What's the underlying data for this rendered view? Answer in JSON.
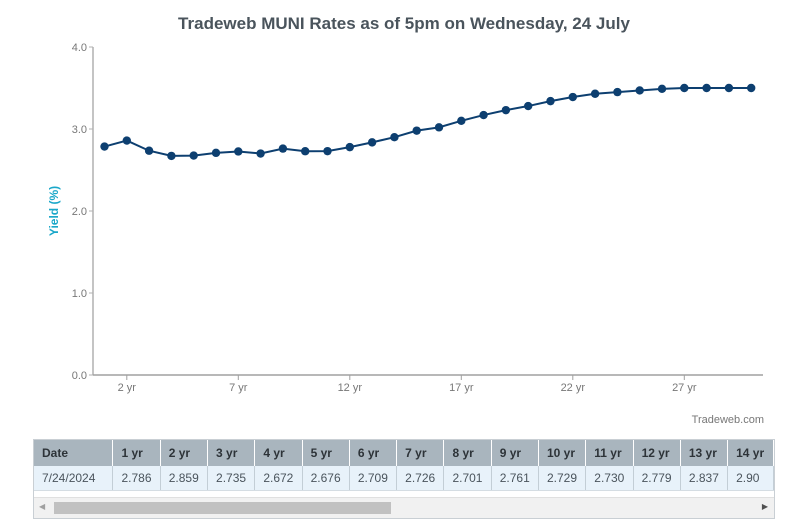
{
  "chart_data": {
    "type": "line",
    "title": "Tradeweb MUNI Rates as of 5pm on Wednesday, 24 July",
    "xlabel": "",
    "ylabel": "Yield (%)",
    "ylim": [
      0,
      4
    ],
    "yticks": [
      "0.0",
      "1.0",
      "2.0",
      "3.0",
      "4.0"
    ],
    "xlim": [
      0.5,
      30.5
    ],
    "xticks": [
      {
        "value": 2,
        "label": "2 yr"
      },
      {
        "value": 7,
        "label": "7 yr"
      },
      {
        "value": 12,
        "label": "12 yr"
      },
      {
        "value": 17,
        "label": "17 yr"
      },
      {
        "value": 22,
        "label": "22 yr"
      },
      {
        "value": 27,
        "label": "27 yr"
      }
    ],
    "grid": false,
    "series": [
      {
        "name": "Yield",
        "color": "#0d3f70",
        "x": [
          1,
          2,
          3,
          4,
          5,
          6,
          7,
          8,
          9,
          10,
          11,
          12,
          13,
          14,
          15,
          16,
          17,
          18,
          19,
          20,
          21,
          22,
          23,
          24,
          25,
          26,
          27,
          28,
          29,
          30
        ],
        "values": [
          2.786,
          2.859,
          2.735,
          2.672,
          2.676,
          2.709,
          2.726,
          2.701,
          2.761,
          2.729,
          2.73,
          2.779,
          2.837,
          2.9,
          2.98,
          3.02,
          3.1,
          3.17,
          3.23,
          3.28,
          3.34,
          3.39,
          3.43,
          3.45,
          3.47,
          3.49,
          3.5,
          3.5,
          3.5,
          3.5
        ]
      }
    ]
  },
  "credit": "Tradeweb.com",
  "table": {
    "headers": [
      "Date",
      "1 yr",
      "2 yr",
      "3 yr",
      "4 yr",
      "5 yr",
      "6 yr",
      "7 yr",
      "8 yr",
      "9 yr",
      "10 yr",
      "11 yr",
      "12 yr",
      "13 yr",
      "14 yr"
    ],
    "rows": [
      [
        "7/24/2024",
        "2.786",
        "2.859",
        "2.735",
        "2.672",
        "2.676",
        "2.709",
        "2.726",
        "2.701",
        "2.761",
        "2.729",
        "2.730",
        "2.779",
        "2.837",
        "2.90"
      ]
    ]
  },
  "colors": {
    "axis_label": "#1aa7c9",
    "line": "#0d3f70",
    "header_bg": "#a9b5be",
    "row_bg": "#e8f2fa"
  }
}
